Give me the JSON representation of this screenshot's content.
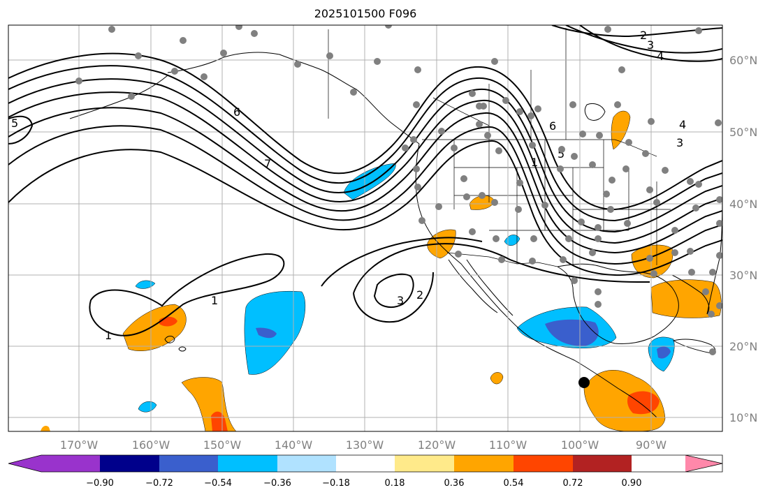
{
  "title": "2025101500 F096",
  "lon_ticks": [
    {
      "lon": -170,
      "label": "170°W"
    },
    {
      "lon": -160,
      "label": "160°W"
    },
    {
      "lon": -150,
      "label": "150°W"
    },
    {
      "lon": -140,
      "label": "140°W"
    },
    {
      "lon": -130,
      "label": "130°W"
    },
    {
      "lon": -120,
      "label": "120°W"
    },
    {
      "lon": -110,
      "label": "110°W"
    },
    {
      "lon": -100,
      "label": "100°W"
    },
    {
      "lon": -90,
      "label": "90°W"
    }
  ],
  "lat_ticks": [
    {
      "lat": 60,
      "label": "60°N"
    },
    {
      "lat": 50,
      "label": "50°N"
    },
    {
      "lat": 40,
      "label": "40°N"
    },
    {
      "lat": 30,
      "label": "30°N"
    },
    {
      "lat": 20,
      "label": "20°N"
    },
    {
      "lat": 10,
      "label": "10°N"
    }
  ],
  "colorbar": {
    "colors": [
      "#9933cc",
      "#00008b",
      "#3a5fcd",
      "#00bfff",
      "#b0e2ff",
      "#ffffff",
      "#ffea8a",
      "#ffa500",
      "#ff4500",
      "#b22222",
      "#ff88aa"
    ],
    "tick_labels": [
      "−0.90",
      "−0.72",
      "−0.54",
      "−0.36",
      "−0.18",
      "0.18",
      "0.36",
      "0.54",
      "0.72",
      "0.90"
    ]
  },
  "contour_labels": [
    "1",
    "2",
    "3",
    "4",
    "5",
    "6",
    "7"
  ],
  "station_marker": {
    "lon": -99.8,
    "lat": 14.8
  }
}
